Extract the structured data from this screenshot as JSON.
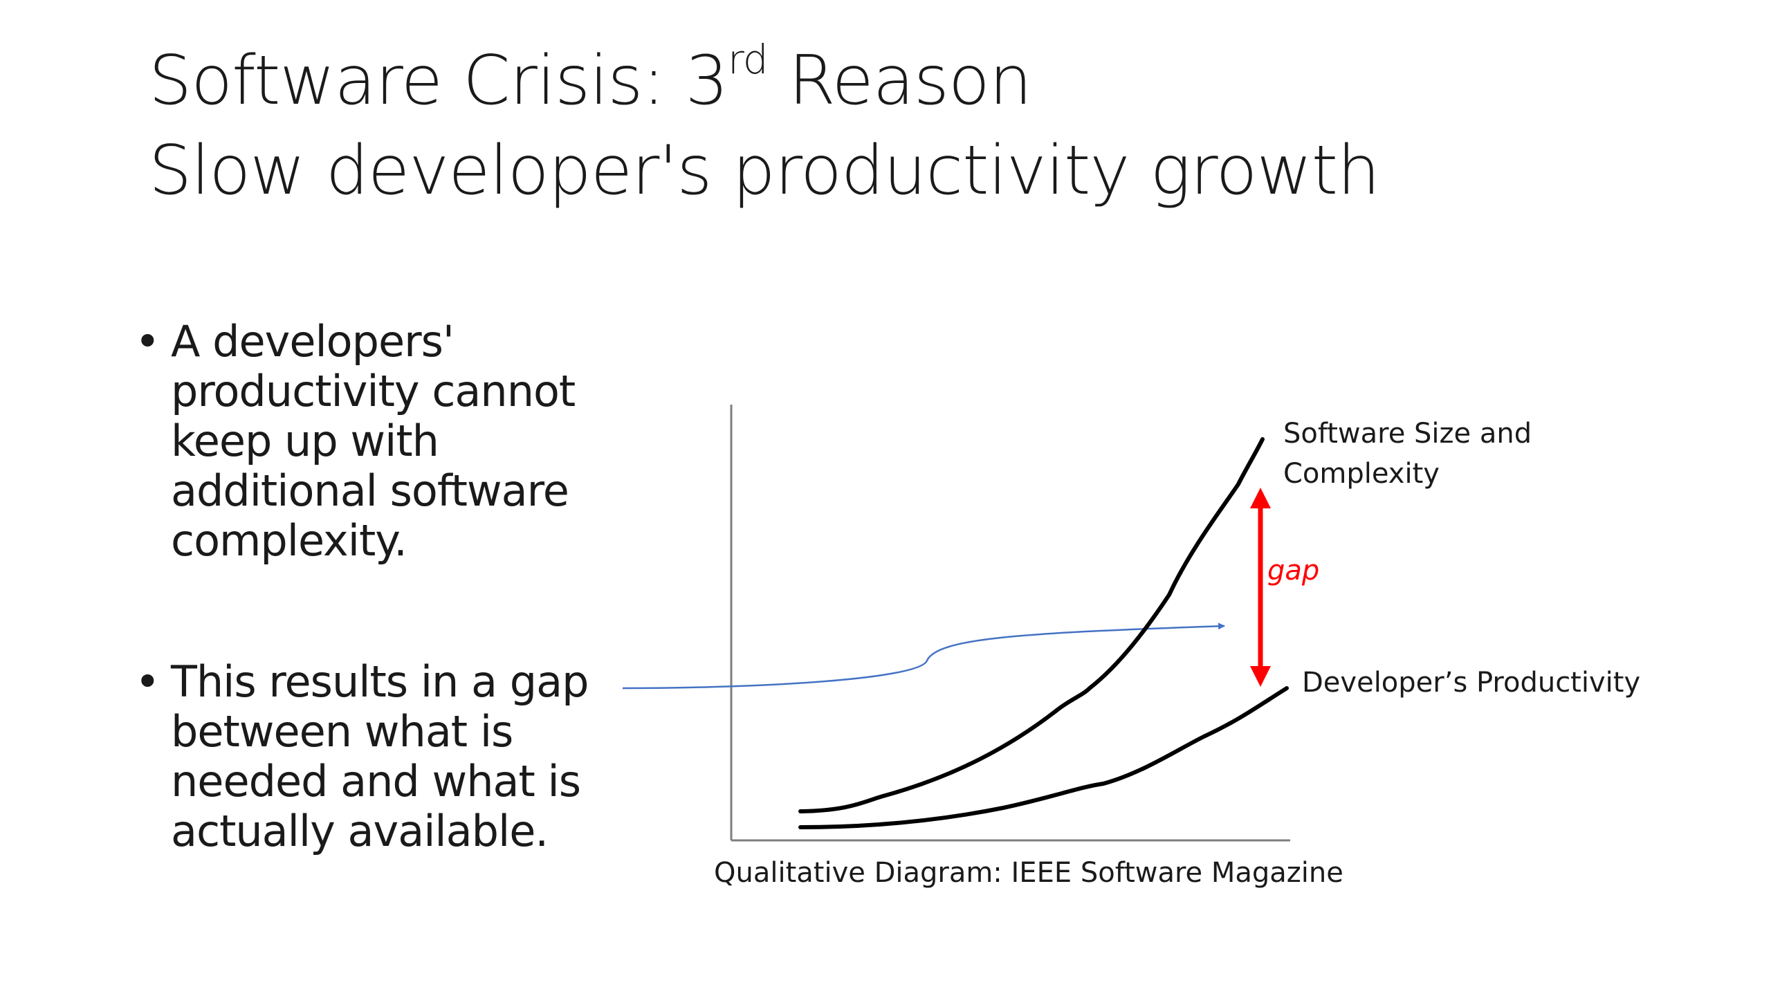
{
  "title": {
    "line1_prefix": "Software Crisis: 3",
    "line1_sup": "rd",
    "line1_suffix": " Reason",
    "line2": "Slow developer's productivity growth"
  },
  "bullets": [
    {
      "marker": "•",
      "text": "A developers' productivity cannot keep up with additional software complexity."
    },
    {
      "marker": "•",
      "text": "This results in a gap between what is needed and what is actually available."
    }
  ],
  "diagram": {
    "curve_labels": {
      "software_line1": "Software Size and",
      "software_line2": "Complexity",
      "developer": "Developer’s Productivity"
    },
    "gap_label": "gap",
    "caption": "Qualitative Diagram: IEEE Software Magazine",
    "colors": {
      "curve": "#000000",
      "axis": "#7f7f7f",
      "gap_arrow": "#ff0000",
      "connector_arrow": "#4472c4"
    }
  }
}
